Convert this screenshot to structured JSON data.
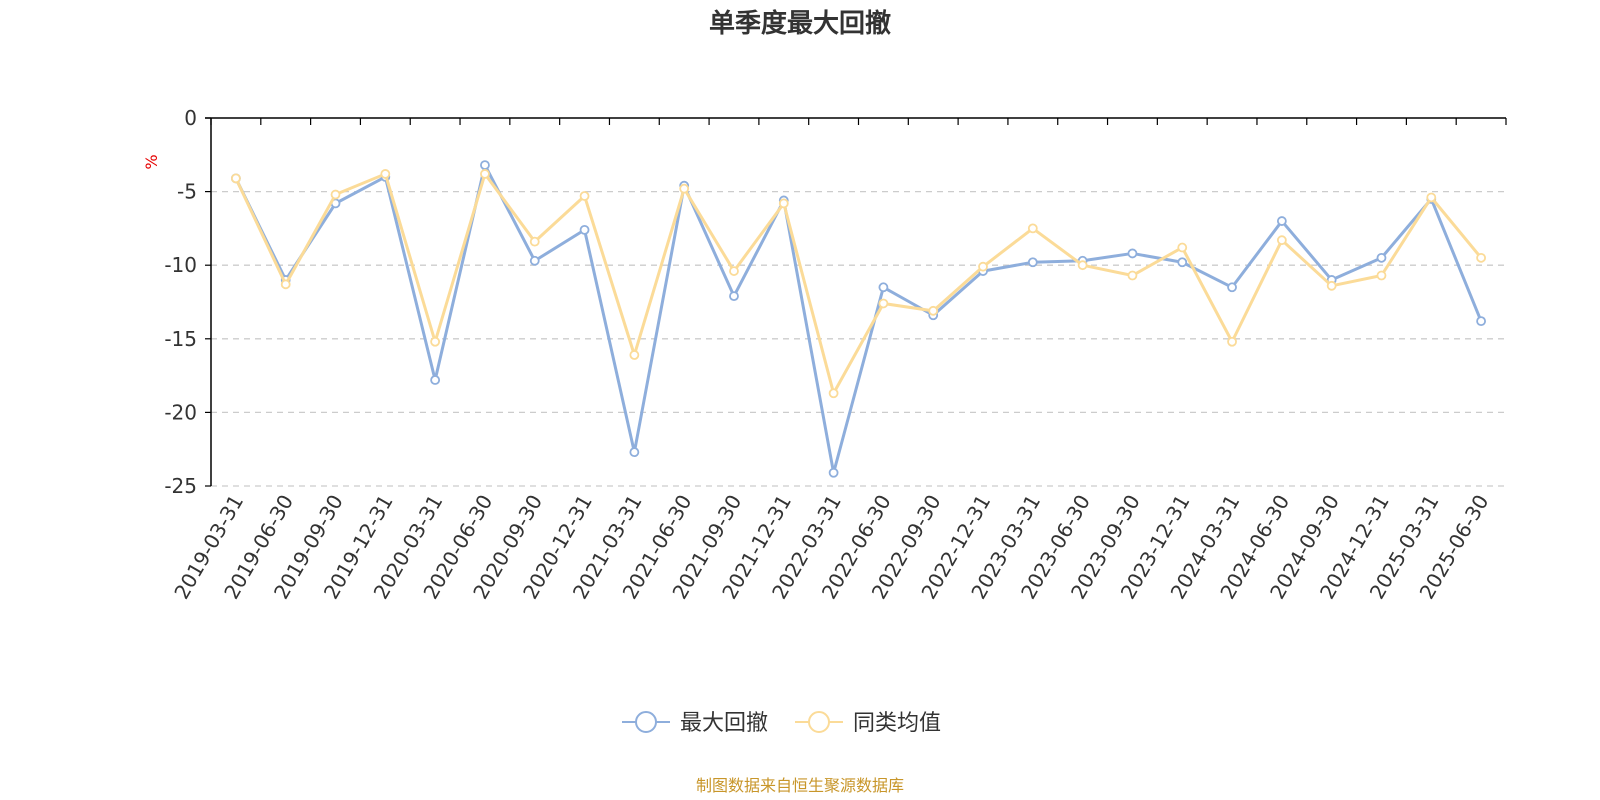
{
  "chart_data": {
    "type": "line",
    "title": "单季度最大回撤",
    "ylabel": "%",
    "ylim": [
      -25,
      0
    ],
    "yticks": [
      0,
      -5,
      -10,
      -15,
      -20,
      -25
    ],
    "grid": "horizontal-dashed",
    "legend_position": "bottom-center",
    "categories": [
      "2019-03-31",
      "2019-06-30",
      "2019-09-30",
      "2019-12-31",
      "2020-03-31",
      "2020-06-30",
      "2020-09-30",
      "2020-12-31",
      "2021-03-31",
      "2021-06-30",
      "2021-09-30",
      "2021-12-31",
      "2022-03-31",
      "2022-06-30",
      "2022-09-30",
      "2022-12-31",
      "2023-03-31",
      "2023-06-30",
      "2023-09-30",
      "2023-12-31",
      "2024-03-31",
      "2024-06-30",
      "2024-09-30",
      "2024-12-31",
      "2025-03-31",
      "2025-06-30"
    ],
    "series": [
      {
        "name": "最大回撤",
        "color": "#8eaedc",
        "values": [
          -4.1,
          -11.0,
          -5.8,
          -4.0,
          -17.8,
          -3.2,
          -9.7,
          -7.6,
          -22.7,
          -4.6,
          -12.1,
          -5.6,
          -24.1,
          -11.5,
          -13.4,
          -10.4,
          -9.8,
          -9.7,
          -9.2,
          -9.8,
          -11.5,
          -7.0,
          -11.0,
          -9.5,
          -5.5,
          -13.8
        ]
      },
      {
        "name": "同类均值",
        "color": "#fbdb98",
        "values": [
          -4.1,
          -11.3,
          -5.2,
          -3.8,
          -15.2,
          -3.8,
          -8.4,
          -5.3,
          -16.1,
          -4.8,
          -10.4,
          -5.8,
          -18.7,
          -12.6,
          -13.1,
          -10.1,
          -7.5,
          -10.0,
          -10.7,
          -8.8,
          -15.2,
          -8.3,
          -11.4,
          -10.7,
          -5.4,
          -9.5
        ]
      }
    ],
    "source": "制图数据来自恒生聚源数据库"
  },
  "colors": {
    "axis": "#000000",
    "grid": "#cccccc",
    "text": "#333333",
    "unit": "#e60000",
    "source": "#c8962a"
  }
}
